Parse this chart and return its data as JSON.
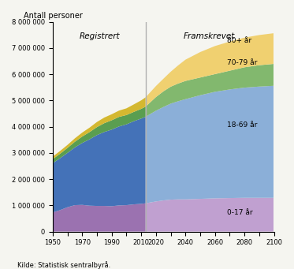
{
  "title_y": "Antall personer",
  "source": "Kilde: Statistisk sentralbyrå.",
  "label_registrert": "Registrert",
  "label_framskrevet": "Framskrevet",
  "divider_year": 2013,
  "colors": {
    "0-17_hist": "#9b72b0",
    "18-69_hist": "#4472b8",
    "70-79_hist": "#5a9e50",
    "80+_hist": "#d4b830",
    "0-17_proj": "#c0a0d0",
    "18-69_proj": "#8bafd8",
    "70-79_proj": "#82b86e",
    "80+_proj": "#f0d070"
  },
  "years_hist": [
    1950,
    1955,
    1960,
    1965,
    1970,
    1975,
    1980,
    1985,
    1990,
    1995,
    2000,
    2005,
    2010,
    2013
  ],
  "hist_0_17": [
    730000,
    820000,
    930000,
    1010000,
    1020000,
    990000,
    980000,
    980000,
    970000,
    1000000,
    1010000,
    1040000,
    1060000,
    1080000
  ],
  "hist_18_69": [
    1880000,
    1980000,
    2070000,
    2200000,
    2360000,
    2530000,
    2700000,
    2820000,
    2920000,
    3010000,
    3080000,
    3170000,
    3250000,
    3300000
  ],
  "hist_70_79": [
    155000,
    170000,
    190000,
    215000,
    245000,
    275000,
    305000,
    335000,
    355000,
    365000,
    355000,
    355000,
    370000,
    385000
  ],
  "hist_80p": [
    95000,
    105000,
    115000,
    130000,
    150000,
    170000,
    195000,
    215000,
    230000,
    240000,
    255000,
    285000,
    325000,
    355000
  ],
  "years_proj": [
    2013,
    2020,
    2025,
    2030,
    2035,
    2040,
    2050,
    2060,
    2070,
    2080,
    2090,
    2100
  ],
  "proj_0_17": [
    1080000,
    1150000,
    1190000,
    1220000,
    1230000,
    1230000,
    1250000,
    1270000,
    1280000,
    1290000,
    1290000,
    1290000
  ],
  "proj_18_69": [
    3300000,
    3460000,
    3560000,
    3660000,
    3740000,
    3820000,
    3950000,
    4060000,
    4140000,
    4200000,
    4240000,
    4270000
  ],
  "proj_70_79": [
    385000,
    520000,
    595000,
    645000,
    675000,
    695000,
    675000,
    675000,
    715000,
    775000,
    815000,
    835000
  ],
  "proj_80p": [
    355000,
    420000,
    480000,
    570000,
    690000,
    810000,
    970000,
    1070000,
    1110000,
    1130000,
    1150000,
    1170000
  ],
  "ylim": [
    0,
    8000000
  ],
  "yticks": [
    0,
    1000000,
    2000000,
    3000000,
    4000000,
    5000000,
    6000000,
    7000000,
    8000000
  ],
  "ytick_labels": [
    "0",
    "1 000 000",
    "2 000 000",
    "3 000 000",
    "4 000 000",
    "5 000 000",
    "6 000 000",
    "7 000 000",
    "8 000 000"
  ],
  "background": "#f5f5f0",
  "plot_bg": "#f5f5f0"
}
